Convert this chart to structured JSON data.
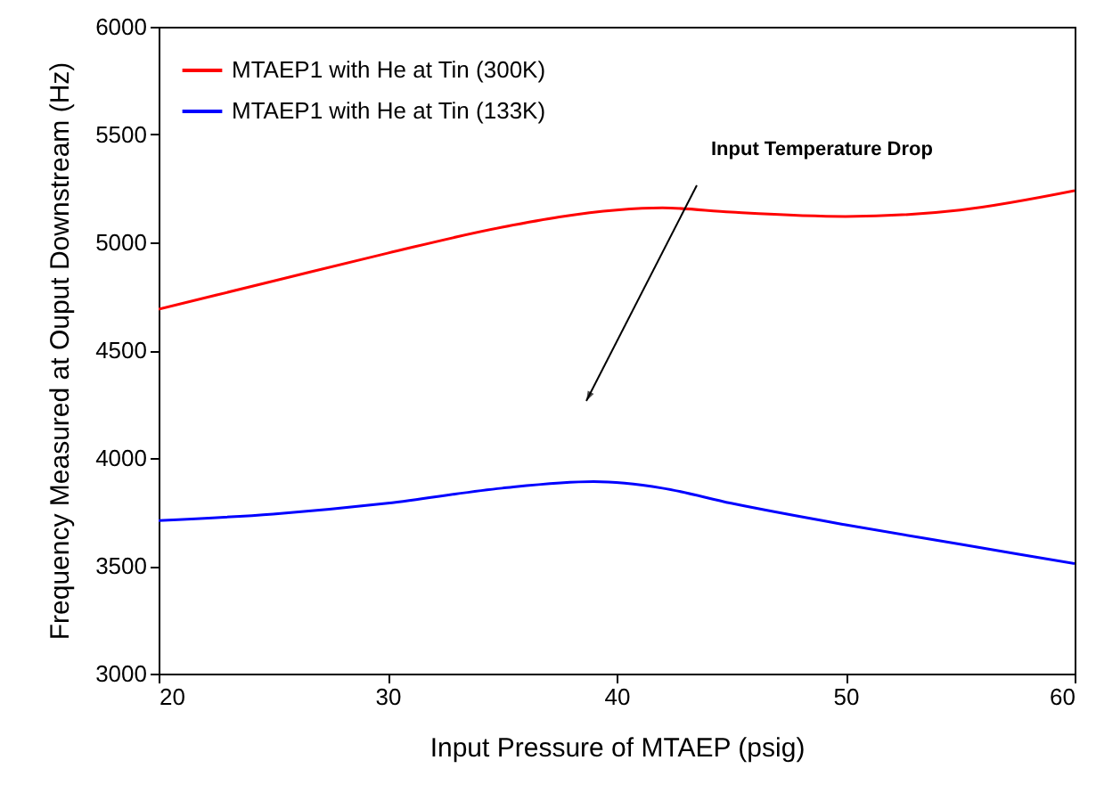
{
  "chart_data": {
    "type": "line",
    "xlabel": "Input Pressure of MTAEP (psig)",
    "ylabel": "Frequency Measured at Ouput Downstream (Hz)",
    "series": [
      {
        "name": "MTAEP1 with He at Tin (300K)",
        "color": "#ff0000",
        "x": [
          20,
          25,
          30,
          35,
          40,
          42,
          45,
          50,
          55,
          60
        ],
        "values": [
          4690,
          4820,
          4950,
          5070,
          5150,
          5160,
          5140,
          5120,
          5150,
          5240
        ]
      },
      {
        "name": "MTAEP1 with He at Tin (133K)",
        "color": "#0000ff",
        "x": [
          20,
          25,
          30,
          35,
          39,
          42,
          45,
          50,
          55,
          60
        ],
        "values": [
          3710,
          3740,
          3790,
          3860,
          3890,
          3860,
          3790,
          3690,
          3600,
          3510
        ]
      }
    ],
    "xlim": [
      20,
      60
    ],
    "xticks": [
      20,
      30,
      40,
      50,
      60
    ],
    "ylim": [
      3000,
      6000
    ],
    "yticks": [
      3000,
      3500,
      4000,
      4500,
      5000,
      5500,
      6000
    ],
    "grid": false,
    "legend": "top left",
    "marker": "none",
    "line_style": "solid",
    "annotations": [
      "Input Temperature Drop"
    ]
  }
}
